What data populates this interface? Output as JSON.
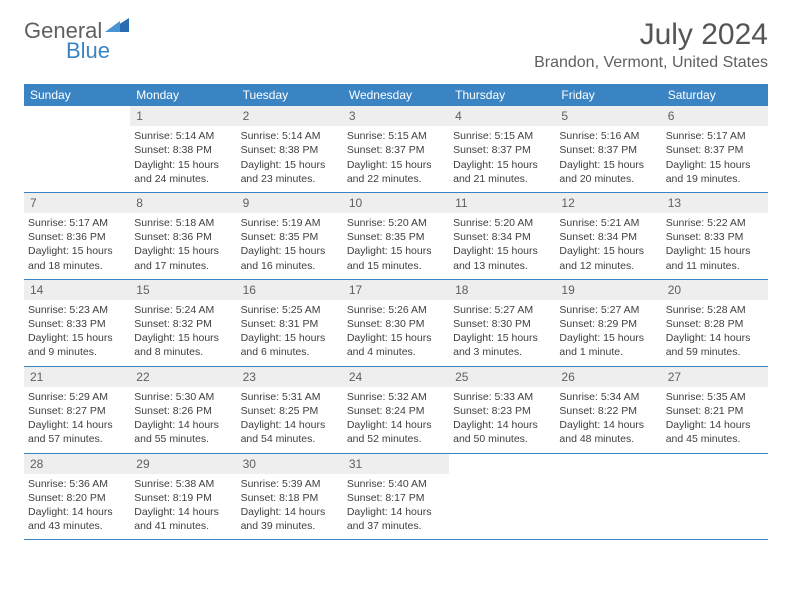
{
  "logo": {
    "part1": "General",
    "part2": "Blue"
  },
  "title": "July 2024",
  "location": "Brandon, Vermont, United States",
  "weekdays": [
    "Sunday",
    "Monday",
    "Tuesday",
    "Wednesday",
    "Thursday",
    "Friday",
    "Saturday"
  ],
  "colors": {
    "header_bar": "#3a84c4",
    "daynum_bg": "#eeeeee",
    "text": "#404040",
    "title_text": "#555555"
  },
  "weeks": [
    [
      {
        "num": "",
        "sunrise": "",
        "sunset": "",
        "daylight": ""
      },
      {
        "num": "1",
        "sunrise": "Sunrise: 5:14 AM",
        "sunset": "Sunset: 8:38 PM",
        "daylight": "Daylight: 15 hours and 24 minutes."
      },
      {
        "num": "2",
        "sunrise": "Sunrise: 5:14 AM",
        "sunset": "Sunset: 8:38 PM",
        "daylight": "Daylight: 15 hours and 23 minutes."
      },
      {
        "num": "3",
        "sunrise": "Sunrise: 5:15 AM",
        "sunset": "Sunset: 8:37 PM",
        "daylight": "Daylight: 15 hours and 22 minutes."
      },
      {
        "num": "4",
        "sunrise": "Sunrise: 5:15 AM",
        "sunset": "Sunset: 8:37 PM",
        "daylight": "Daylight: 15 hours and 21 minutes."
      },
      {
        "num": "5",
        "sunrise": "Sunrise: 5:16 AM",
        "sunset": "Sunset: 8:37 PM",
        "daylight": "Daylight: 15 hours and 20 minutes."
      },
      {
        "num": "6",
        "sunrise": "Sunrise: 5:17 AM",
        "sunset": "Sunset: 8:37 PM",
        "daylight": "Daylight: 15 hours and 19 minutes."
      }
    ],
    [
      {
        "num": "7",
        "sunrise": "Sunrise: 5:17 AM",
        "sunset": "Sunset: 8:36 PM",
        "daylight": "Daylight: 15 hours and 18 minutes."
      },
      {
        "num": "8",
        "sunrise": "Sunrise: 5:18 AM",
        "sunset": "Sunset: 8:36 PM",
        "daylight": "Daylight: 15 hours and 17 minutes."
      },
      {
        "num": "9",
        "sunrise": "Sunrise: 5:19 AM",
        "sunset": "Sunset: 8:35 PM",
        "daylight": "Daylight: 15 hours and 16 minutes."
      },
      {
        "num": "10",
        "sunrise": "Sunrise: 5:20 AM",
        "sunset": "Sunset: 8:35 PM",
        "daylight": "Daylight: 15 hours and 15 minutes."
      },
      {
        "num": "11",
        "sunrise": "Sunrise: 5:20 AM",
        "sunset": "Sunset: 8:34 PM",
        "daylight": "Daylight: 15 hours and 13 minutes."
      },
      {
        "num": "12",
        "sunrise": "Sunrise: 5:21 AM",
        "sunset": "Sunset: 8:34 PM",
        "daylight": "Daylight: 15 hours and 12 minutes."
      },
      {
        "num": "13",
        "sunrise": "Sunrise: 5:22 AM",
        "sunset": "Sunset: 8:33 PM",
        "daylight": "Daylight: 15 hours and 11 minutes."
      }
    ],
    [
      {
        "num": "14",
        "sunrise": "Sunrise: 5:23 AM",
        "sunset": "Sunset: 8:33 PM",
        "daylight": "Daylight: 15 hours and 9 minutes."
      },
      {
        "num": "15",
        "sunrise": "Sunrise: 5:24 AM",
        "sunset": "Sunset: 8:32 PM",
        "daylight": "Daylight: 15 hours and 8 minutes."
      },
      {
        "num": "16",
        "sunrise": "Sunrise: 5:25 AM",
        "sunset": "Sunset: 8:31 PM",
        "daylight": "Daylight: 15 hours and 6 minutes."
      },
      {
        "num": "17",
        "sunrise": "Sunrise: 5:26 AM",
        "sunset": "Sunset: 8:30 PM",
        "daylight": "Daylight: 15 hours and 4 minutes."
      },
      {
        "num": "18",
        "sunrise": "Sunrise: 5:27 AM",
        "sunset": "Sunset: 8:30 PM",
        "daylight": "Daylight: 15 hours and 3 minutes."
      },
      {
        "num": "19",
        "sunrise": "Sunrise: 5:27 AM",
        "sunset": "Sunset: 8:29 PM",
        "daylight": "Daylight: 15 hours and 1 minute."
      },
      {
        "num": "20",
        "sunrise": "Sunrise: 5:28 AM",
        "sunset": "Sunset: 8:28 PM",
        "daylight": "Daylight: 14 hours and 59 minutes."
      }
    ],
    [
      {
        "num": "21",
        "sunrise": "Sunrise: 5:29 AM",
        "sunset": "Sunset: 8:27 PM",
        "daylight": "Daylight: 14 hours and 57 minutes."
      },
      {
        "num": "22",
        "sunrise": "Sunrise: 5:30 AM",
        "sunset": "Sunset: 8:26 PM",
        "daylight": "Daylight: 14 hours and 55 minutes."
      },
      {
        "num": "23",
        "sunrise": "Sunrise: 5:31 AM",
        "sunset": "Sunset: 8:25 PM",
        "daylight": "Daylight: 14 hours and 54 minutes."
      },
      {
        "num": "24",
        "sunrise": "Sunrise: 5:32 AM",
        "sunset": "Sunset: 8:24 PM",
        "daylight": "Daylight: 14 hours and 52 minutes."
      },
      {
        "num": "25",
        "sunrise": "Sunrise: 5:33 AM",
        "sunset": "Sunset: 8:23 PM",
        "daylight": "Daylight: 14 hours and 50 minutes."
      },
      {
        "num": "26",
        "sunrise": "Sunrise: 5:34 AM",
        "sunset": "Sunset: 8:22 PM",
        "daylight": "Daylight: 14 hours and 48 minutes."
      },
      {
        "num": "27",
        "sunrise": "Sunrise: 5:35 AM",
        "sunset": "Sunset: 8:21 PM",
        "daylight": "Daylight: 14 hours and 45 minutes."
      }
    ],
    [
      {
        "num": "28",
        "sunrise": "Sunrise: 5:36 AM",
        "sunset": "Sunset: 8:20 PM",
        "daylight": "Daylight: 14 hours and 43 minutes."
      },
      {
        "num": "29",
        "sunrise": "Sunrise: 5:38 AM",
        "sunset": "Sunset: 8:19 PM",
        "daylight": "Daylight: 14 hours and 41 minutes."
      },
      {
        "num": "30",
        "sunrise": "Sunrise: 5:39 AM",
        "sunset": "Sunset: 8:18 PM",
        "daylight": "Daylight: 14 hours and 39 minutes."
      },
      {
        "num": "31",
        "sunrise": "Sunrise: 5:40 AM",
        "sunset": "Sunset: 8:17 PM",
        "daylight": "Daylight: 14 hours and 37 minutes."
      },
      {
        "num": "",
        "sunrise": "",
        "sunset": "",
        "daylight": ""
      },
      {
        "num": "",
        "sunrise": "",
        "sunset": "",
        "daylight": ""
      },
      {
        "num": "",
        "sunrise": "",
        "sunset": "",
        "daylight": ""
      }
    ]
  ]
}
